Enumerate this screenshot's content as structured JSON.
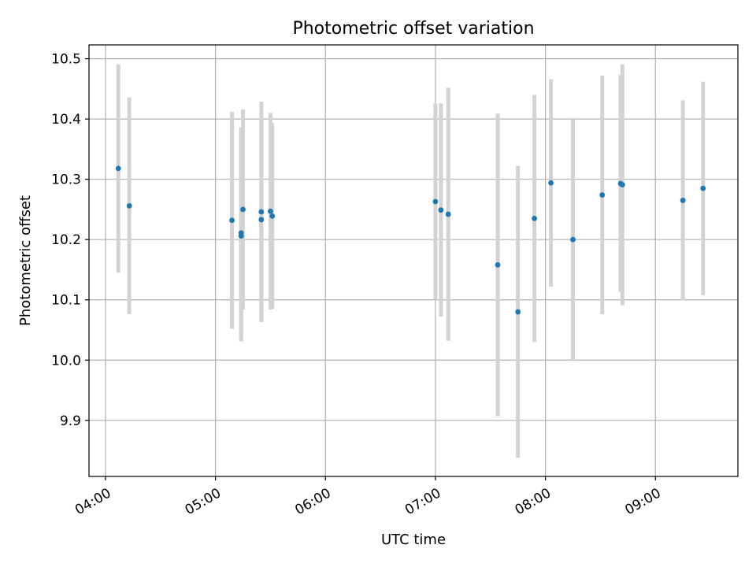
{
  "chart_data": {
    "type": "scatter",
    "title": "Photometric offset variation",
    "xlabel": "UTC time",
    "ylabel": "Photometric offset",
    "x_tick_labels": [
      "04:00",
      "05:00",
      "06:00",
      "07:00",
      "08:00",
      "09:00"
    ],
    "x_tick_minutes": [
      240,
      300,
      360,
      420,
      480,
      540
    ],
    "y_tick_labels": [
      "9.9",
      "10.0",
      "10.1",
      "10.2",
      "10.3",
      "10.4",
      "10.5"
    ],
    "y_tick_values": [
      9.9,
      10.0,
      10.1,
      10.2,
      10.3,
      10.4,
      10.5
    ],
    "xlim": [
      "03:51",
      "09:45"
    ],
    "ylim": [
      9.807,
      10.523
    ],
    "grid": true,
    "colors": {
      "point": "#1f77b4",
      "errorbar": "#d3d3d3",
      "grid": "#b0b0b0",
      "axes": "#000000"
    },
    "series": [
      {
        "points": [
          {
            "x": "04:07",
            "y": 10.318,
            "err": 0.173
          },
          {
            "x": "04:13",
            "y": 10.256,
            "err": 0.18
          },
          {
            "x": "05:09",
            "y": 10.232,
            "err": 0.18
          },
          {
            "x": "05:14",
            "y": 10.206,
            "err": 0.175
          },
          {
            "x": "05:14",
            "y": 10.211,
            "err": 0.175
          },
          {
            "x": "05:15",
            "y": 10.25,
            "err": 0.166
          },
          {
            "x": "05:25",
            "y": 10.246,
            "err": 0.183
          },
          {
            "x": "05:25",
            "y": 10.233,
            "err": 0.168
          },
          {
            "x": "05:30",
            "y": 10.247,
            "err": 0.163
          },
          {
            "x": "05:31",
            "y": 10.239,
            "err": 0.154
          },
          {
            "x": "07:00",
            "y": 10.263,
            "err": 0.163
          },
          {
            "x": "07:03",
            "y": 10.249,
            "err": 0.177
          },
          {
            "x": "07:07",
            "y": 10.242,
            "err": 0.21
          },
          {
            "x": "07:34",
            "y": 10.158,
            "err": 0.251
          },
          {
            "x": "07:45",
            "y": 10.08,
            "err": 0.242
          },
          {
            "x": "07:54",
            "y": 10.235,
            "err": 0.205
          },
          {
            "x": "08:03",
            "y": 10.294,
            "err": 0.172
          },
          {
            "x": "08:15",
            "y": 10.2,
            "err": 0.2
          },
          {
            "x": "08:31",
            "y": 10.274,
            "err": 0.198
          },
          {
            "x": "08:41",
            "y": 10.293,
            "err": 0.18
          },
          {
            "x": "08:42",
            "y": 10.291,
            "err": 0.2
          },
          {
            "x": "09:15",
            "y": 10.265,
            "err": 0.166
          },
          {
            "x": "09:26",
            "y": 10.285,
            "err": 0.177
          }
        ]
      }
    ]
  }
}
